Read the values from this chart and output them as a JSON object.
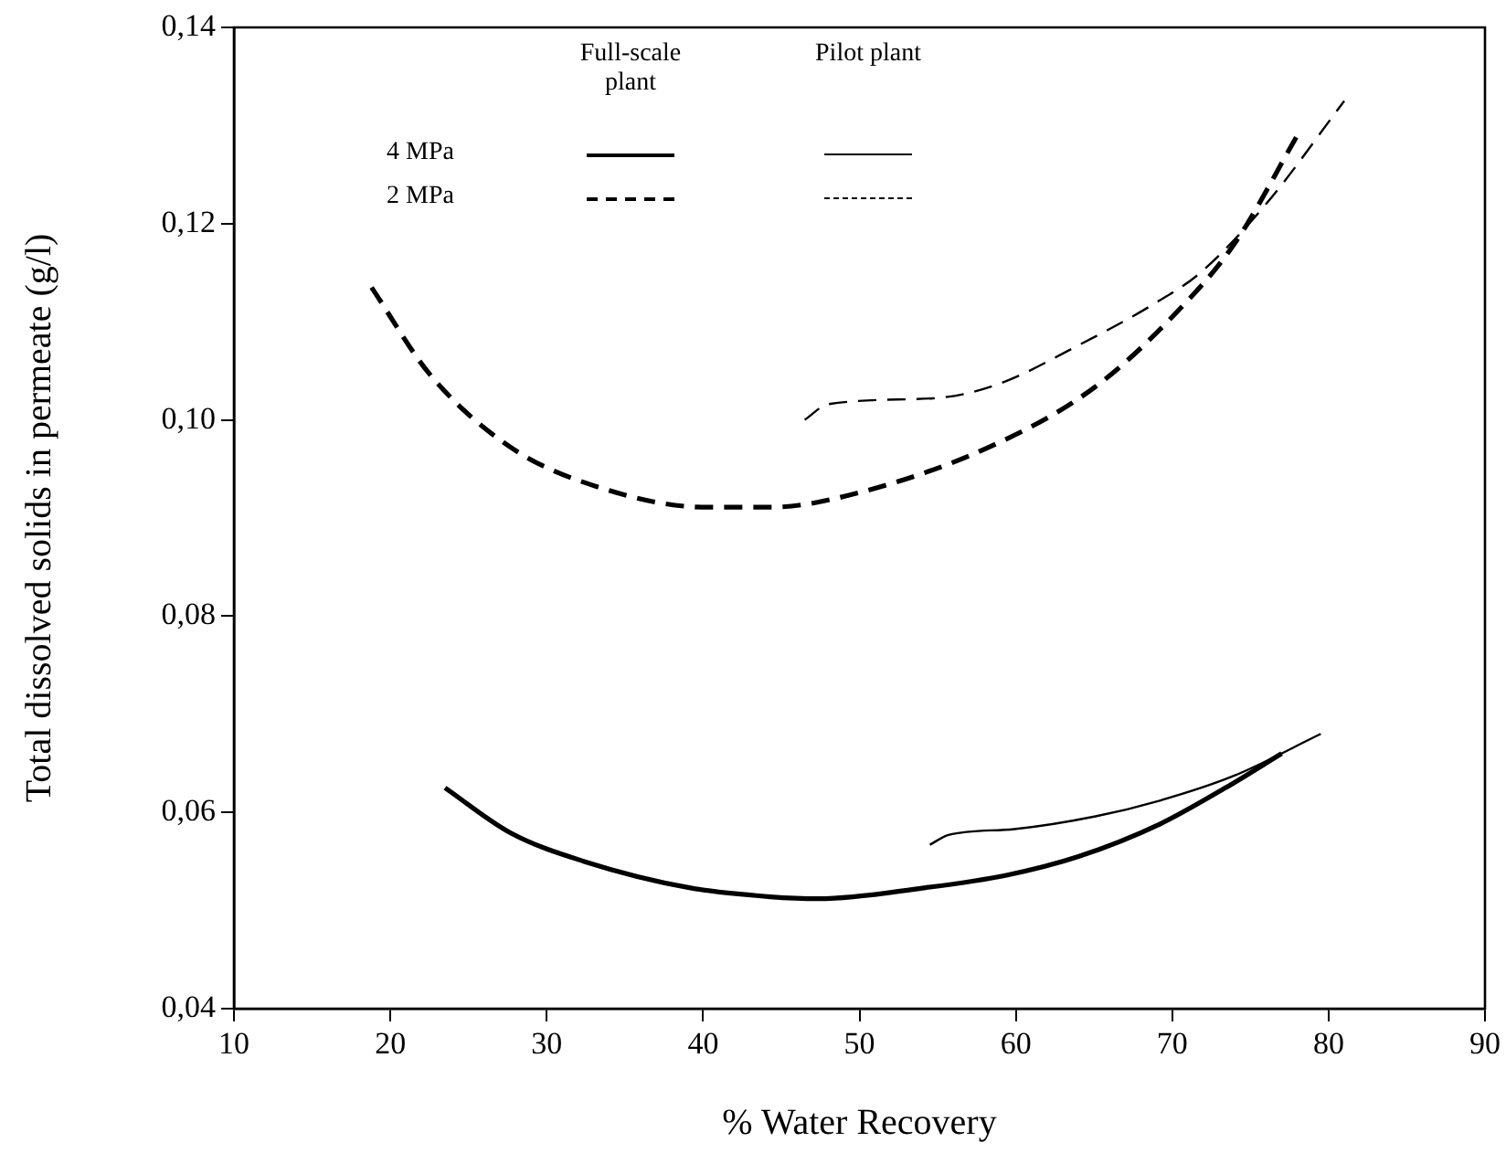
{
  "chart_data": {
    "type": "line",
    "xlabel": "% Water Recovery",
    "ylabel": "Total dissolved solids in permeate (g/l)",
    "xlim": [
      10,
      90
    ],
    "xticks": [
      10,
      20,
      30,
      40,
      50,
      60,
      70,
      80,
      90
    ],
    "ylim": [
      0.04,
      0.14
    ],
    "yticks": [
      {
        "value": 0.04,
        "label": "0,04"
      },
      {
        "value": 0.06,
        "label": "0,06"
      },
      {
        "value": 0.08,
        "label": "0,08"
      },
      {
        "value": 0.1,
        "label": "0,10"
      },
      {
        "value": 0.12,
        "label": "0,12"
      },
      {
        "value": 0.14,
        "label": "0,14"
      }
    ],
    "grid": false,
    "legend": false,
    "marker": "none",
    "annotations": [
      "Full-scale plant",
      "Pilot plant",
      "4 MPa",
      "2 MPa"
    ],
    "series": [
      {
        "color": "#000000",
        "line_style": "solid",
        "x": [
          23.5,
          27.7,
          32.4,
          39.2,
          44.3,
          47.4,
          54.1,
          59.4,
          64.0,
          69.2,
          73.4,
          77.0
        ],
        "values": [
          0.0625,
          0.0579,
          0.055,
          0.0523,
          0.0514,
          0.0512,
          0.0523,
          0.0536,
          0.0555,
          0.0588,
          0.0625,
          0.066
        ]
      },
      {
        "color": "#000000",
        "line_style": "solid",
        "x": [
          54.5,
          55.7,
          59.9,
          65.1,
          69.2,
          73.9,
          79.5
        ],
        "values": [
          0.0567,
          0.0577,
          0.0583,
          0.0596,
          0.0612,
          0.0637,
          0.068
        ]
      },
      {
        "color": "#000000",
        "line_style": "dashed",
        "x": [
          18.8,
          22.5,
          27.7,
          33.4,
          40.2,
          44.3,
          50.0,
          58.8,
          65.1,
          70.3,
          74.0,
          78.0
        ],
        "values": [
          0.1135,
          0.1047,
          0.0972,
          0.0931,
          0.0911,
          0.0911,
          0.0926,
          0.0976,
          0.1034,
          0.111,
          0.118,
          0.129
        ]
      },
      {
        "color": "#000000",
        "line_style": "dashed",
        "x": [
          46.5,
          48.0,
          54.7,
          58.8,
          64.0,
          68.7,
          71.8,
          76.0,
          81.0
        ],
        "values": [
          0.1,
          0.1016,
          0.1022,
          0.1036,
          0.1076,
          0.1117,
          0.115,
          0.122,
          0.1325
        ]
      }
    ]
  }
}
